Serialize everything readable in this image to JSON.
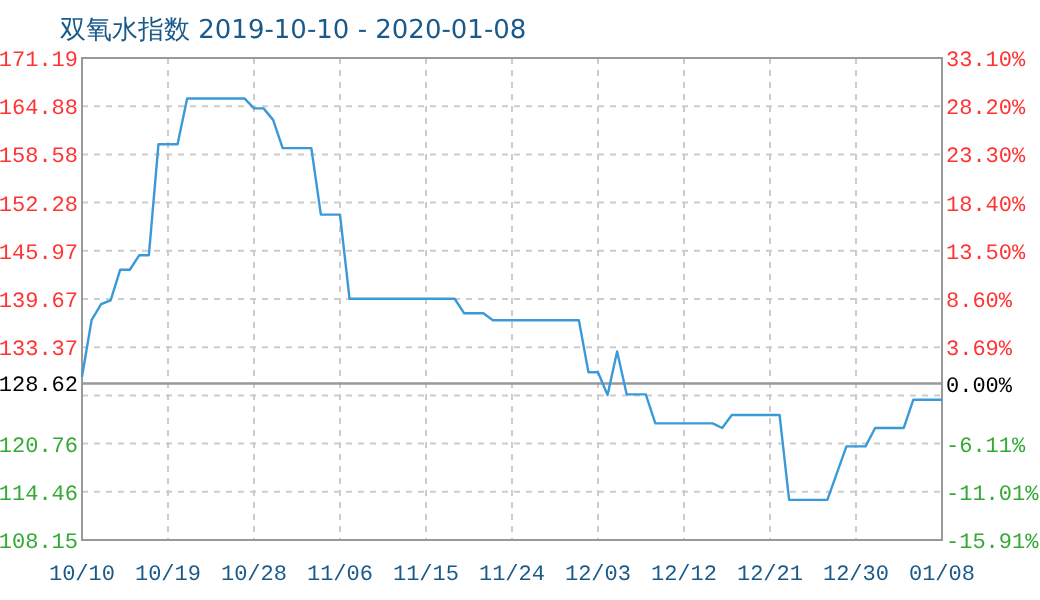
{
  "chart_data": {
    "type": "line",
    "title": "双氧水指数 2019-10-10 - 2020-01-08",
    "x": [
      "2019-10-10",
      "2019-10-11",
      "2019-10-12",
      "2019-10-13",
      "2019-10-14",
      "2019-10-15",
      "2019-10-16",
      "2019-10-17",
      "2019-10-18",
      "2019-10-20",
      "2019-10-21",
      "2019-10-27",
      "2019-10-28",
      "2019-10-29",
      "2019-10-30",
      "2019-10-31",
      "2019-11-03",
      "2019-11-04",
      "2019-11-06",
      "2019-11-07",
      "2019-11-18",
      "2019-11-19",
      "2019-11-21",
      "2019-11-22",
      "2019-12-01",
      "2019-12-02",
      "2019-12-03",
      "2019-12-04",
      "2019-12-05",
      "2019-12-06",
      "2019-12-08",
      "2019-12-09",
      "2019-12-15",
      "2019-12-16",
      "2019-12-17",
      "2019-12-22",
      "2019-12-23",
      "2019-12-27",
      "2019-12-29",
      "2019-12-31",
      "2020-01-01",
      "2020-01-04",
      "2020-01-05",
      "2020-01-08"
    ],
    "series": [
      {
        "color": "#3a9ad9",
        "values": [
          129.5,
          136.9,
          139.0,
          139.5,
          143.5,
          143.5,
          145.4,
          145.4,
          159.9,
          159.9,
          165.9,
          165.9,
          164.6,
          164.6,
          163.1,
          159.4,
          159.4,
          150.7,
          150.7,
          139.7,
          139.7,
          137.8,
          137.8,
          136.9,
          136.9,
          130.1,
          130.1,
          127.1,
          132.8,
          127.2,
          127.2,
          123.4,
          123.4,
          122.8,
          124.5,
          124.5,
          113.4,
          113.4,
          120.4,
          120.4,
          122.8,
          122.8,
          126.5,
          126.5
        ]
      }
    ],
    "xlim": [
      "2019-10-10",
      "2020-01-08"
    ],
    "xticks": [
      {
        "value": "2019-10-10",
        "label": "10/10"
      },
      {
        "value": "2019-10-19",
        "label": "10/19"
      },
      {
        "value": "2019-10-28",
        "label": "10/28"
      },
      {
        "value": "2019-11-06",
        "label": "11/06"
      },
      {
        "value": "2019-11-15",
        "label": "11/15"
      },
      {
        "value": "2019-11-24",
        "label": "11/24"
      },
      {
        "value": "2019-12-03",
        "label": "12/03"
      },
      {
        "value": "2019-12-12",
        "label": "12/12"
      },
      {
        "value": "2019-12-21",
        "label": "12/21"
      },
      {
        "value": "2019-12-30",
        "label": "12/30"
      },
      {
        "value": "2020-01-08",
        "label": "01/08"
      }
    ],
    "ylim": [
      108.15,
      171.19
    ],
    "yticks": [
      108.15,
      114.46,
      120.76,
      {
        "value": 127.06,
        "label": null
      },
      133.37,
      139.67,
      145.97,
      152.28,
      158.58,
      164.88,
      171.19
    ],
    "y2lim": [
      -15.91,
      33.1
    ],
    "y2ticks": [
      {
        "value": -15.91,
        "label": "-15.91%"
      },
      {
        "value": -11.01,
        "label": "-11.01%"
      },
      {
        "value": -6.11,
        "label": "-6.11%"
      },
      {
        "value": -1.21,
        "label": null
      },
      {
        "value": 0,
        "label": "0.00%"
      },
      {
        "value": 3.69,
        "label": "3.69%"
      },
      {
        "value": 8.6,
        "label": "8.60%"
      },
      {
        "value": 13.5,
        "label": "13.50%"
      },
      {
        "value": 18.4,
        "label": "18.40%"
      },
      {
        "value": 23.3,
        "label": "23.30%"
      },
      {
        "value": 28.2,
        "label": "28.20%"
      },
      {
        "value": 33.1,
        "label": "33.10%"
      }
    ],
    "ref_lines": [
      {
        "axis": "y",
        "value": 128.62,
        "label": "128.62"
      }
    ],
    "grid": true,
    "marker": "none",
    "line_style": "solid"
  }
}
